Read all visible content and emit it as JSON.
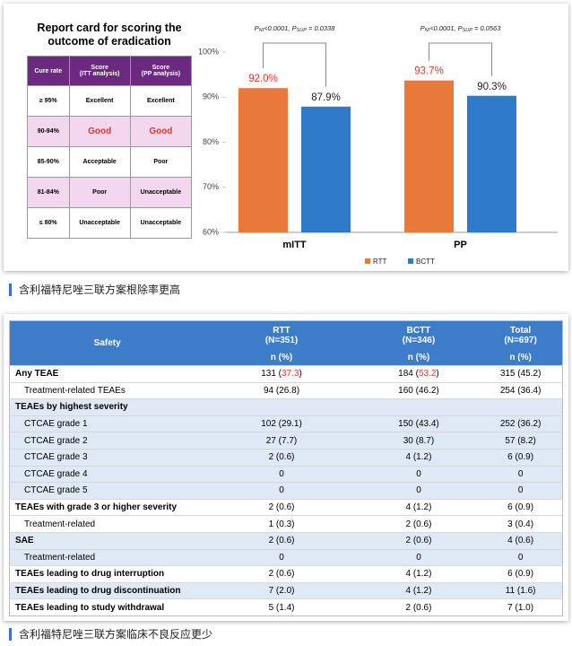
{
  "report_card": {
    "title": "Report card for scoring the outcome of eradication",
    "header": [
      "Cure rate",
      "Score\n(ITT analysis)",
      "Score\n(PP analysis)"
    ],
    "rows": [
      [
        "≥ 95%",
        "Excellent",
        "Excellent"
      ],
      [
        "90-94%",
        "Good",
        "Good"
      ],
      [
        "85-90%",
        "Acceptable",
        "Poor"
      ],
      [
        "81-84%",
        "Poor",
        "Unacceptable"
      ],
      [
        "≤ 80%",
        "Unacceptable",
        "Unacceptable"
      ]
    ]
  },
  "chart_data": {
    "type": "bar",
    "categories": [
      "mITT",
      "PP"
    ],
    "series": [
      {
        "name": "RTT",
        "color": "#e8793a",
        "label_color": "#d63a2a",
        "values": [
          92.0,
          93.7
        ],
        "value_labels": [
          "92.0%",
          "93.7%"
        ]
      },
      {
        "name": "BCTT",
        "color": "#2f7ac9",
        "label_color": "#222222",
        "values": [
          87.9,
          90.3
        ],
        "value_labels": [
          "87.9%",
          "90.3%"
        ]
      }
    ],
    "annotations": [
      [
        "P",
        "NI",
        "<0.0001, P",
        "SUP",
        " = 0.0338"
      ],
      [
        "P",
        "NI",
        "<0.0001, P",
        "SUP",
        " = 0.0563"
      ]
    ],
    "ylim": [
      60,
      100
    ],
    "yticks": [
      {
        "value": 60,
        "label": "60%"
      },
      {
        "value": 70,
        "label": "70%"
      },
      {
        "value": 80,
        "label": "80%"
      },
      {
        "value": 90,
        "label": "90%"
      },
      {
        "value": 100,
        "label": "100%"
      }
    ],
    "grid": false,
    "legend": "bottom"
  },
  "caption1": "含利福特尼唑三联方案根除率更高",
  "safety_table": {
    "header": [
      "Safety",
      "RTT\n(N=351)",
      "BCTT\n(N=346)",
      "Total\n(N=697)"
    ],
    "subheader": [
      "n (%)",
      "n (%)",
      "n (%)"
    ],
    "rows": [
      {
        "label": "Any TEAE",
        "cells": [
          "131 (37.3)",
          "184 (53.2)",
          "315 (45.2)"
        ]
      },
      {
        "label": "Treatment-related TEAEs",
        "indent": true,
        "cells": [
          "94 (26.8)",
          "160 (46.2)",
          "254 (36.4)"
        ]
      },
      {
        "label": "TEAEs by highest severity",
        "cells": [],
        "shade": true
      },
      {
        "label": "CTCAE grade 1",
        "indent": true,
        "cells": [
          "102 (29.1)",
          "150 (43.4)",
          "252 (36.2)"
        ],
        "shade": true
      },
      {
        "label": "CTCAE grade 2",
        "indent": true,
        "cells": [
          "27 (7.7)",
          "30 (8.7)",
          "57 (8.2)"
        ],
        "shade": true
      },
      {
        "label": "CTCAE grade 3",
        "indent": true,
        "cells": [
          "2 (0.6)",
          "4 (1.2)",
          "6 (0.9)"
        ],
        "shade": true
      },
      {
        "label": "CTCAE grade 4",
        "indent": true,
        "cells": [
          "0",
          "0",
          "0"
        ],
        "shade": true
      },
      {
        "label": "CTCAE grade 5",
        "indent": true,
        "cells": [
          "0",
          "0",
          "0"
        ],
        "shade": true
      },
      {
        "label": "TEAEs with grade 3 or higher severity",
        "cells": [
          "2 (0.6)",
          "4 (1.2)",
          "6 (0.9)"
        ]
      },
      {
        "label": "Treatment-related",
        "indent": true,
        "cells": [
          "1 (0.3)",
          "2 (0.6)",
          "3 (0.4)"
        ]
      },
      {
        "label": "SAE",
        "cells": [
          "2 (0.6)",
          "2 (0.6)",
          "4 (0.6)"
        ],
        "shade": true
      },
      {
        "label": "Treatment-related",
        "indent": true,
        "cells": [
          "0",
          "0",
          "0"
        ],
        "shade": true
      },
      {
        "label": "TEAEs leading to drug interruption",
        "cells": [
          "2 (0.6)",
          "4 (1.2)",
          "6 (0.9)"
        ]
      },
      {
        "label": "TEAEs leading to drug discontinuation",
        "cells": [
          "7 (2.0)",
          "4 (1.2)",
          "11 (1.6)"
        ],
        "shade": true
      },
      {
        "label": "TEAEs leading to study withdrawal",
        "cells": [
          "5 (1.4)",
          "2 (0.6)",
          "7 (1.0)"
        ]
      }
    ],
    "highlight": [
      [
        0,
        0
      ],
      [
        0,
        1
      ]
    ],
    "highlight_color": "#d63a2a"
  },
  "caption2": "含利福特尼唑三联方案临床不良反应更少"
}
